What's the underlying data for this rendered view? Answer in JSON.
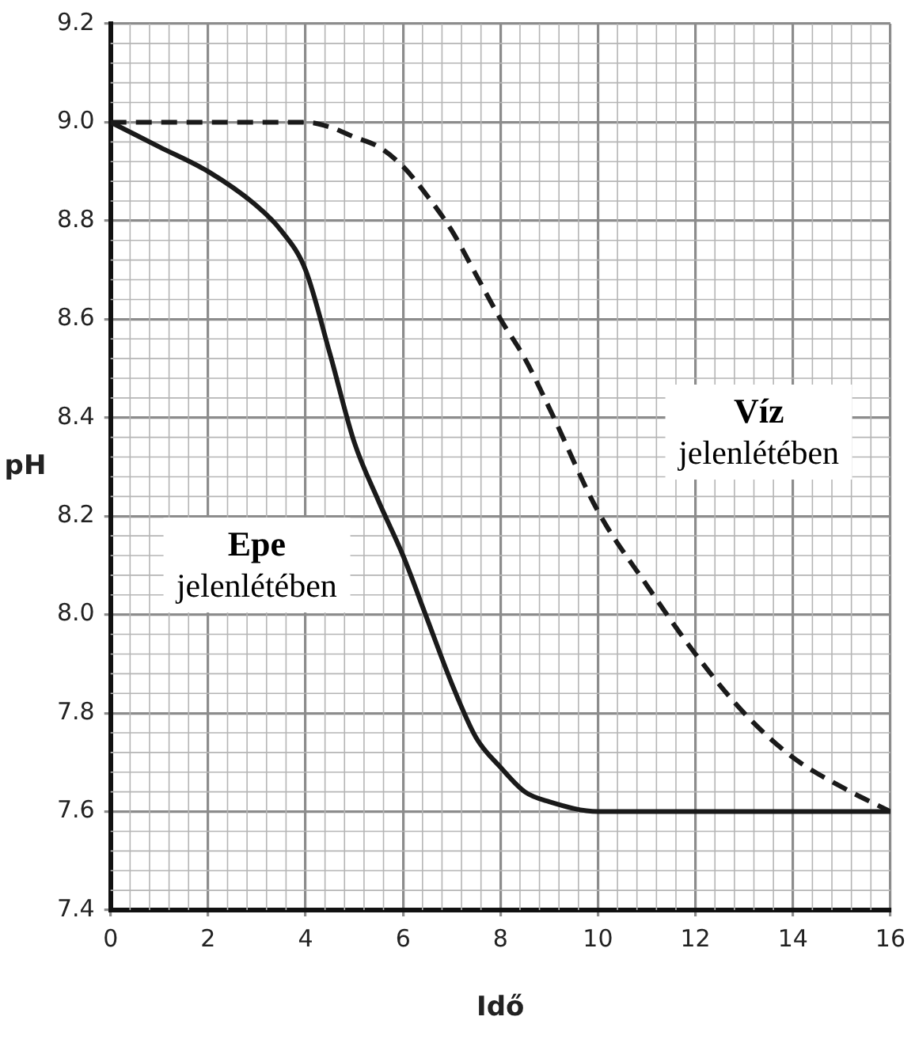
{
  "chart_data": {
    "type": "line",
    "xlabel": "Idő",
    "ylabel": "pH",
    "xlim": [
      0,
      16
    ],
    "xticks": [
      0,
      2,
      4,
      6,
      8,
      10,
      12,
      14,
      16
    ],
    "ylim": [
      7.4,
      9.2
    ],
    "yticks": [
      7.4,
      7.6,
      7.8,
      {
        "value": 8,
        "label": "8.0"
      },
      8.2,
      8.4,
      8.6,
      8.8,
      {
        "value": 9,
        "label": "9.0"
      },
      9.2
    ],
    "grid": true,
    "legend": false,
    "marker": "none",
    "series": [
      {
        "color": "#1a1a1a",
        "line_style": "solid",
        "x": [
          0,
          1,
          2,
          3,
          3.5,
          4,
          4.5,
          5,
          5.5,
          6,
          6.5,
          7,
          7.5,
          8,
          8.5,
          9,
          10,
          16
        ],
        "values": [
          9.0,
          8.95,
          8.9,
          8.83,
          8.78,
          8.7,
          8.53,
          8.35,
          8.23,
          8.12,
          7.99,
          7.86,
          7.75,
          7.69,
          7.64,
          7.62,
          7.6,
          7.6
        ]
      },
      {
        "color": "#1a1a1a",
        "line_style": "dashed",
        "x": [
          0,
          4,
          4.5,
          5,
          5.5,
          6,
          6.5,
          7,
          7.5,
          8,
          8.5,
          9,
          10,
          11,
          12,
          13,
          14,
          15,
          16
        ],
        "values": [
          9.0,
          9.0,
          8.99,
          8.97,
          8.95,
          8.91,
          8.85,
          8.78,
          8.69,
          8.6,
          8.52,
          8.42,
          8.21,
          8.06,
          7.92,
          7.8,
          7.71,
          7.65,
          7.6
        ]
      }
    ],
    "annotations": [
      "Víz\njelenlétében",
      "Epe\njelenlétében"
    ]
  }
}
